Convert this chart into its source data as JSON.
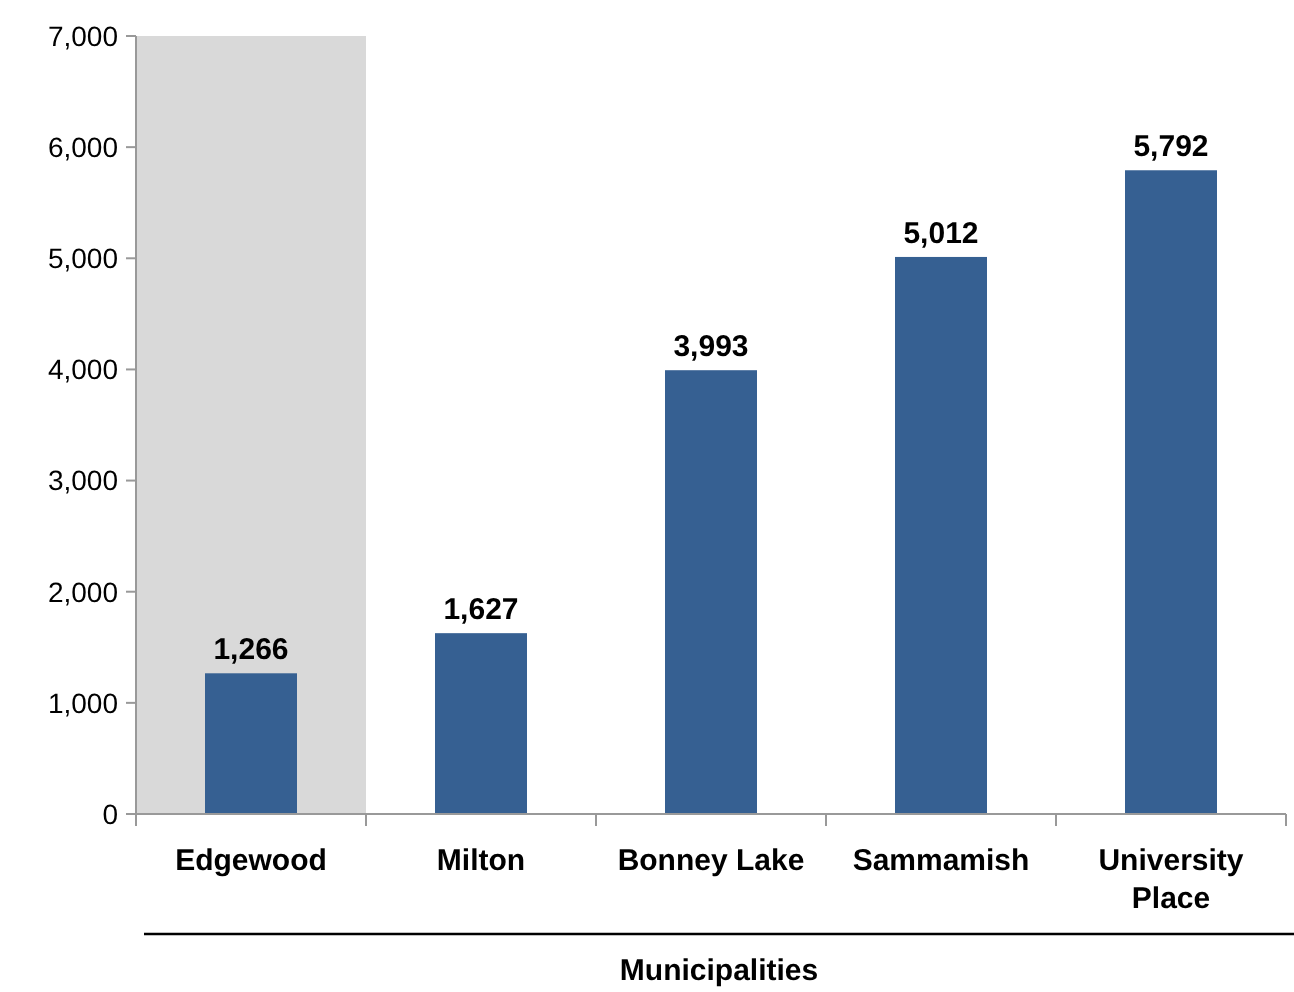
{
  "chart_data": {
    "type": "bar",
    "xlabel": "Municipalities",
    "categories": [
      "Edgewood",
      "Milton",
      "Bonney Lake",
      "Sammamish",
      "University Place"
    ],
    "values": [
      1266,
      1627,
      3993,
      5012,
      5792
    ],
    "color": "#366092",
    "ylim": [
      0,
      7000
    ],
    "yticks": [
      {
        "value": 0,
        "label": "0"
      },
      {
        "value": 1000,
        "label": "1,000"
      },
      {
        "value": 2000,
        "label": "2,000"
      },
      {
        "value": 3000,
        "label": "3,000"
      },
      {
        "value": 4000,
        "label": "4,000"
      },
      {
        "value": 5000,
        "label": "5,000"
      },
      {
        "value": 6000,
        "label": "6,000"
      },
      {
        "value": 7000,
        "label": "7,000"
      }
    ],
    "bands": [
      {
        "axis": "x",
        "from": "Edgewood",
        "to": "Edgewood",
        "color": "#d9d9d9"
      }
    ],
    "value_labels": [
      "1,266",
      "1,627",
      "3,993",
      "5,012",
      "5,792"
    ],
    "grid": false
  }
}
